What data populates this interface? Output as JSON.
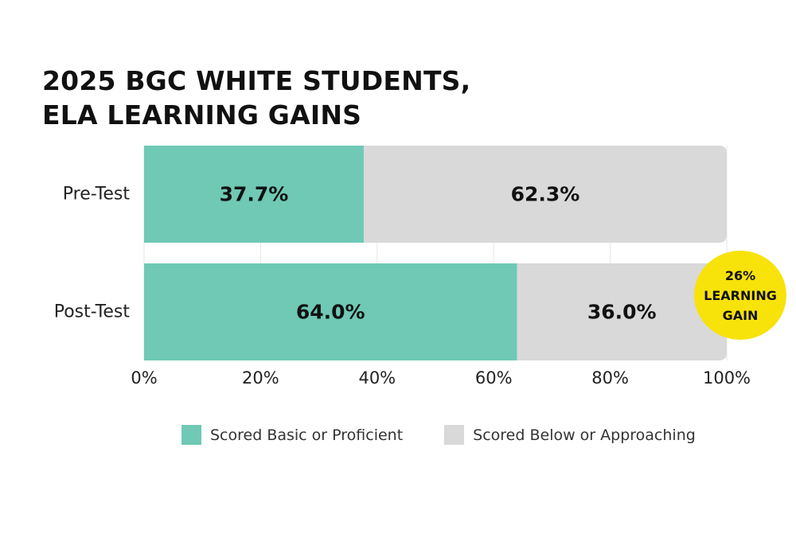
{
  "title": [
    "2025 BGC WHITE STUDENTS,",
    "ELA LEARNING GAINS"
  ],
  "badge": {
    "lines": [
      "26%",
      "LEARNING",
      "GAIN"
    ],
    "color": "#F7E20A"
  },
  "legend": [
    {
      "label": "Scored Basic or Proficient",
      "color": "#6FC9B5"
    },
    {
      "label": "Scored Below or Approaching",
      "color": "#D9D9D9"
    }
  ],
  "chart_data": {
    "type": "bar",
    "orientation": "horizontal",
    "stacked": true,
    "categories": [
      "Pre-Test",
      "Post-Test"
    ],
    "series": [
      {
        "name": "Scored Basic or Proficient",
        "values": [
          37.7,
          64.0
        ],
        "labels": [
          "37.7%",
          "64.0%"
        ],
        "color": "#6FC9B5"
      },
      {
        "name": "Scored Below or Approaching",
        "values": [
          62.3,
          36.0
        ],
        "labels": [
          "62.3%",
          "36.0%"
        ],
        "color": "#D9D9D9"
      }
    ],
    "xticks": [
      "0%",
      "20%",
      "40%",
      "60%",
      "80%",
      "100%"
    ],
    "xlim": [
      0,
      100
    ],
    "legend_position": "bottom",
    "grid": true
  }
}
